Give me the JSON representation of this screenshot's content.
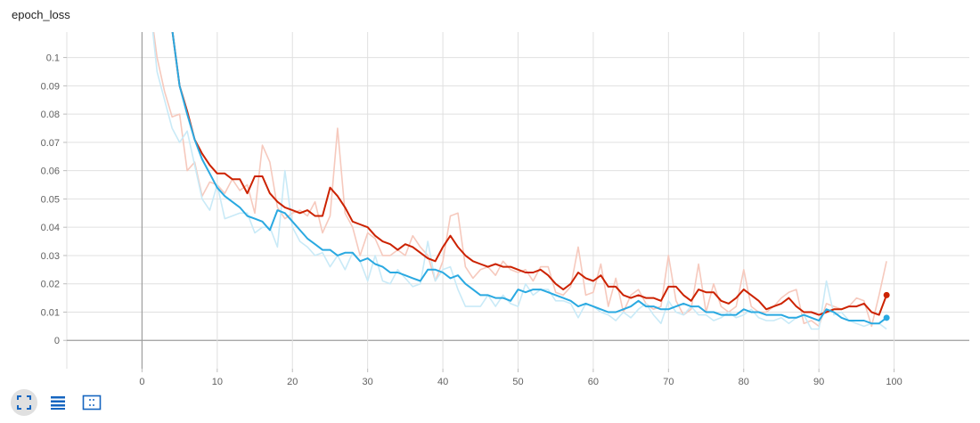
{
  "title": "epoch_loss",
  "toolbar": {
    "buttons": [
      {
        "name": "fit-to-data",
        "icon": "fullscreen-icon",
        "active": true
      },
      {
        "name": "toggle-log-scale",
        "icon": "list-icon",
        "active": false
      },
      {
        "name": "fit-domain",
        "icon": "dashed-box-icon",
        "active": false
      }
    ]
  },
  "colors": {
    "series1_smoothed": "#cc2200",
    "series1_raw": "#f6c9bd",
    "series2_smoothed": "#2aa9e1",
    "series2_raw": "#c9eaf7",
    "grid": "#e0e0e0",
    "zero_axis": "#9e9e9e"
  },
  "chart_data": {
    "type": "line",
    "title": "epoch_loss",
    "xlabel": "",
    "ylabel": "",
    "xlim": [
      -10,
      110
    ],
    "ylim": [
      -0.01,
      0.109
    ],
    "xticks": [
      0,
      10,
      20,
      30,
      40,
      50,
      60,
      70,
      80,
      90,
      100
    ],
    "yticks": [
      0,
      0.01,
      0.02,
      0.03,
      0.04,
      0.05,
      0.06,
      0.07,
      0.08,
      0.09,
      0.1
    ],
    "grid": true,
    "series": [
      {
        "role": "smoothed",
        "color": "#cc2200",
        "x": [
          4,
          5,
          6,
          7,
          8,
          9,
          10,
          11,
          12,
          13,
          14,
          15,
          16,
          17,
          18,
          19,
          20,
          21,
          22,
          23,
          24,
          25,
          26,
          27,
          28,
          29,
          30,
          31,
          32,
          33,
          34,
          35,
          36,
          37,
          38,
          39,
          40,
          41,
          42,
          43,
          44,
          45,
          46,
          47,
          48,
          49,
          50,
          51,
          52,
          53,
          54,
          55,
          56,
          57,
          58,
          59,
          60,
          61,
          62,
          63,
          64,
          65,
          66,
          67,
          68,
          69,
          70,
          71,
          72,
          73,
          74,
          75,
          76,
          77,
          78,
          79,
          80,
          81,
          82,
          83,
          84,
          85,
          86,
          87,
          88,
          89,
          90,
          91,
          92,
          93,
          94,
          95,
          96,
          97,
          98,
          99
        ],
        "y": [
          0.11,
          0.09,
          0.081,
          0.071,
          0.066,
          0.062,
          0.059,
          0.059,
          0.057,
          0.057,
          0.052,
          0.058,
          0.058,
          0.052,
          0.049,
          0.047,
          0.046,
          0.045,
          0.046,
          0.044,
          0.044,
          0.054,
          0.051,
          0.047,
          0.042,
          0.041,
          0.04,
          0.037,
          0.035,
          0.034,
          0.032,
          0.034,
          0.033,
          0.031,
          0.029,
          0.028,
          0.033,
          0.037,
          0.033,
          0.03,
          0.028,
          0.027,
          0.026,
          0.027,
          0.026,
          0.026,
          0.025,
          0.024,
          0.024,
          0.025,
          0.023,
          0.02,
          0.018,
          0.02,
          0.024,
          0.022,
          0.021,
          0.023,
          0.019,
          0.019,
          0.016,
          0.015,
          0.016,
          0.015,
          0.015,
          0.014,
          0.019,
          0.019,
          0.016,
          0.014,
          0.018,
          0.017,
          0.017,
          0.014,
          0.013,
          0.015,
          0.018,
          0.016,
          0.014,
          0.011,
          0.012,
          0.013,
          0.015,
          0.012,
          0.01,
          0.01,
          0.009,
          0.01,
          0.011,
          0.011,
          0.012,
          0.012,
          0.013,
          0.01,
          0.009,
          0.016
        ]
      },
      {
        "role": "smoothed",
        "color": "#2aa9e1",
        "x": [
          4,
          5,
          6,
          7,
          8,
          9,
          10,
          11,
          12,
          13,
          14,
          15,
          16,
          17,
          18,
          19,
          20,
          21,
          22,
          23,
          24,
          25,
          26,
          27,
          28,
          29,
          30,
          31,
          32,
          33,
          34,
          35,
          36,
          37,
          38,
          39,
          40,
          41,
          42,
          43,
          44,
          45,
          46,
          47,
          48,
          49,
          50,
          51,
          52,
          53,
          54,
          55,
          56,
          57,
          58,
          59,
          60,
          61,
          62,
          63,
          64,
          65,
          66,
          67,
          68,
          69,
          70,
          71,
          72,
          73,
          74,
          75,
          76,
          77,
          78,
          79,
          80,
          81,
          82,
          83,
          84,
          85,
          86,
          87,
          88,
          89,
          90,
          91,
          92,
          93,
          94,
          95,
          96,
          97,
          98,
          99
        ],
        "y": [
          0.11,
          0.09,
          0.08,
          0.071,
          0.064,
          0.059,
          0.054,
          0.051,
          0.049,
          0.047,
          0.044,
          0.043,
          0.042,
          0.039,
          0.046,
          0.045,
          0.042,
          0.039,
          0.036,
          0.034,
          0.032,
          0.032,
          0.03,
          0.031,
          0.031,
          0.028,
          0.029,
          0.027,
          0.026,
          0.024,
          0.024,
          0.023,
          0.022,
          0.021,
          0.025,
          0.025,
          0.024,
          0.022,
          0.023,
          0.02,
          0.018,
          0.016,
          0.016,
          0.015,
          0.015,
          0.014,
          0.018,
          0.017,
          0.018,
          0.018,
          0.017,
          0.016,
          0.015,
          0.014,
          0.012,
          0.013,
          0.012,
          0.011,
          0.01,
          0.01,
          0.011,
          0.012,
          0.014,
          0.012,
          0.012,
          0.011,
          0.011,
          0.012,
          0.013,
          0.012,
          0.012,
          0.01,
          0.01,
          0.009,
          0.009,
          0.009,
          0.011,
          0.01,
          0.01,
          0.009,
          0.009,
          0.009,
          0.008,
          0.008,
          0.009,
          0.008,
          0.007,
          0.011,
          0.01,
          0.008,
          0.007,
          0.007,
          0.007,
          0.006,
          0.006,
          0.008
        ]
      },
      {
        "role": "raw",
        "color": "#f6c9bd",
        "x": [
          1,
          2,
          3,
          4,
          5,
          6,
          7,
          8,
          9,
          10,
          11,
          12,
          13,
          14,
          15,
          16,
          17,
          18,
          19,
          20,
          21,
          22,
          23,
          24,
          25,
          26,
          27,
          28,
          29,
          30,
          31,
          32,
          33,
          34,
          35,
          36,
          37,
          38,
          39,
          40,
          41,
          42,
          43,
          44,
          45,
          46,
          47,
          48,
          49,
          50,
          51,
          52,
          53,
          54,
          55,
          56,
          57,
          58,
          59,
          60,
          61,
          62,
          63,
          64,
          65,
          66,
          67,
          68,
          69,
          70,
          71,
          72,
          73,
          74,
          75,
          76,
          77,
          78,
          79,
          80,
          81,
          82,
          83,
          84,
          85,
          86,
          87,
          88,
          89,
          90,
          91,
          92,
          93,
          94,
          95,
          96,
          97,
          98,
          99
        ],
        "y": [
          0.12,
          0.1,
          0.088,
          0.079,
          0.08,
          0.06,
          0.063,
          0.051,
          0.056,
          0.055,
          0.052,
          0.057,
          0.053,
          0.055,
          0.045,
          0.069,
          0.063,
          0.047,
          0.043,
          0.045,
          0.046,
          0.044,
          0.049,
          0.038,
          0.044,
          0.075,
          0.045,
          0.04,
          0.03,
          0.038,
          0.036,
          0.03,
          0.03,
          0.032,
          0.03,
          0.037,
          0.033,
          0.03,
          0.021,
          0.028,
          0.044,
          0.045,
          0.026,
          0.022,
          0.025,
          0.026,
          0.023,
          0.028,
          0.025,
          0.024,
          0.025,
          0.021,
          0.026,
          0.026,
          0.017,
          0.016,
          0.019,
          0.033,
          0.016,
          0.017,
          0.027,
          0.012,
          0.022,
          0.01,
          0.016,
          0.018,
          0.013,
          0.011,
          0.012,
          0.03,
          0.014,
          0.009,
          0.011,
          0.027,
          0.01,
          0.02,
          0.012,
          0.01,
          0.012,
          0.025,
          0.012,
          0.01,
          0.01,
          0.012,
          0.015,
          0.017,
          0.018,
          0.006,
          0.007,
          0.005,
          0.013,
          0.012,
          0.011,
          0.012,
          0.015,
          0.014,
          0.005,
          0.016,
          0.028
        ]
      },
      {
        "role": "raw",
        "color": "#c9eaf7",
        "x": [
          1,
          2,
          3,
          4,
          5,
          6,
          7,
          8,
          9,
          10,
          11,
          12,
          13,
          14,
          15,
          16,
          17,
          18,
          19,
          20,
          21,
          22,
          23,
          24,
          25,
          26,
          27,
          28,
          29,
          30,
          31,
          32,
          33,
          34,
          35,
          36,
          37,
          38,
          39,
          40,
          41,
          42,
          43,
          44,
          45,
          46,
          47,
          48,
          49,
          50,
          51,
          52,
          53,
          54,
          55,
          56,
          57,
          58,
          59,
          60,
          61,
          62,
          63,
          64,
          65,
          66,
          67,
          68,
          69,
          70,
          71,
          72,
          73,
          74,
          75,
          76,
          77,
          78,
          79,
          80,
          81,
          82,
          83,
          84,
          85,
          86,
          87,
          88,
          89,
          90,
          91,
          92,
          93,
          94,
          95,
          96,
          97,
          98,
          99
        ],
        "y": [
          0.12,
          0.095,
          0.085,
          0.075,
          0.07,
          0.074,
          0.062,
          0.05,
          0.046,
          0.055,
          0.043,
          0.044,
          0.045,
          0.045,
          0.038,
          0.04,
          0.04,
          0.033,
          0.06,
          0.04,
          0.035,
          0.033,
          0.03,
          0.031,
          0.026,
          0.03,
          0.025,
          0.031,
          0.028,
          0.021,
          0.03,
          0.021,
          0.02,
          0.025,
          0.022,
          0.019,
          0.02,
          0.035,
          0.021,
          0.025,
          0.026,
          0.018,
          0.012,
          0.012,
          0.012,
          0.016,
          0.012,
          0.016,
          0.013,
          0.012,
          0.02,
          0.016,
          0.018,
          0.018,
          0.014,
          0.014,
          0.013,
          0.008,
          0.013,
          0.012,
          0.01,
          0.009,
          0.007,
          0.01,
          0.008,
          0.011,
          0.013,
          0.009,
          0.006,
          0.014,
          0.01,
          0.009,
          0.012,
          0.009,
          0.009,
          0.007,
          0.008,
          0.01,
          0.008,
          0.009,
          0.011,
          0.008,
          0.007,
          0.007,
          0.008,
          0.006,
          0.008,
          0.009,
          0.004,
          0.004,
          0.021,
          0.009,
          0.01,
          0.007,
          0.006,
          0.005,
          0.006,
          0.006,
          0.004
        ]
      }
    ]
  }
}
